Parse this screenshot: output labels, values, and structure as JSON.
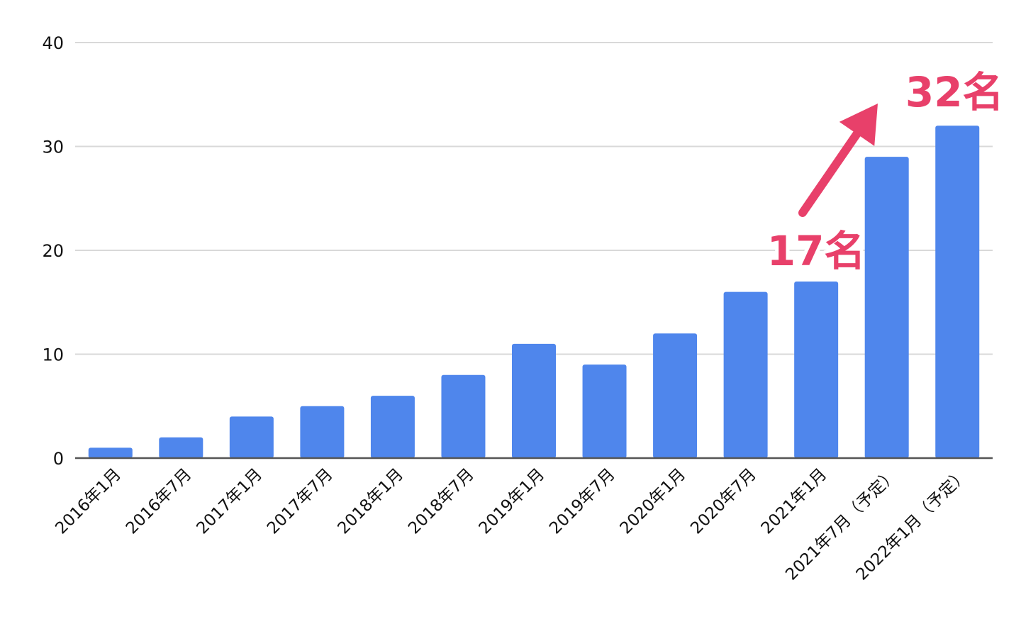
{
  "chart_data": {
    "type": "bar",
    "categories": [
      "2016年1月",
      "2016年7月",
      "2017年1月",
      "2017年7月",
      "2018年1月",
      "2018年7月",
      "2019年1月",
      "2019年7月",
      "2020年1月",
      "2020年7月",
      "2021年1月",
      "2021年7月（予定）",
      "2022年1月（予定）"
    ],
    "values": [
      1,
      2,
      4,
      5,
      6,
      8,
      11,
      9,
      12,
      16,
      17,
      29,
      32
    ],
    "ylim": [
      0,
      40
    ],
    "yticks": [
      0,
      10,
      20,
      30,
      40
    ],
    "grid": true,
    "legend": "none",
    "bar_color": "#4f86ec",
    "annotations": [
      {
        "text": "17名",
        "category_index": 10,
        "color": "#e8406a"
      },
      {
        "text": "32名",
        "category_index": 12,
        "color": "#e8406a"
      }
    ],
    "arrow_color": "#e8406a",
    "title": "",
    "xlabel": "",
    "ylabel": ""
  }
}
